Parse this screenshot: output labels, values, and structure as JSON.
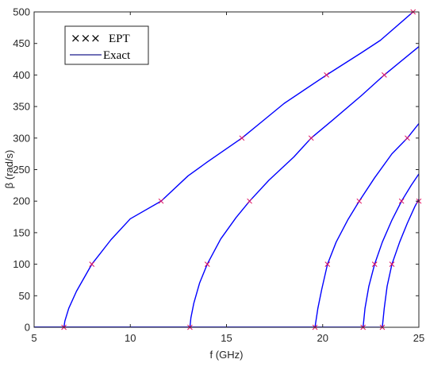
{
  "chart_data": {
    "type": "line",
    "title": "",
    "xlabel": "f (GHz)",
    "ylabel": "β (rad/s)",
    "xlim": [
      5,
      25
    ],
    "ylim": [
      0,
      500
    ],
    "xticks": [
      5,
      10,
      15,
      20,
      25
    ],
    "yticks": [
      0,
      50,
      100,
      150,
      200,
      250,
      300,
      350,
      400,
      450,
      500
    ],
    "grid": false,
    "legend_position": "top-left",
    "legend": [
      {
        "label": "EPT",
        "symbol": "×××",
        "marker": "x",
        "color": "#e0115f"
      },
      {
        "label": "Exact",
        "symbol": "line",
        "color": "#0000ff"
      }
    ],
    "series": [
      {
        "group": "Exact",
        "color": "#0000ff",
        "cutoff": 6.55,
        "x": [
          6.55,
          6.6,
          6.8,
          7.2,
          8.0,
          9.0,
          10.0,
          11.6,
          13.0,
          14.0,
          15.8,
          17.0,
          18.0,
          20.2,
          22.0,
          23.0,
          24.7,
          25.0
        ],
        "y": [
          0,
          10,
          30,
          57,
          100,
          139,
          172,
          200,
          240,
          262,
          300,
          330,
          355,
          400,
          435,
          455,
          500,
          505
        ]
      },
      {
        "group": "Exact",
        "color": "#0000ff",
        "cutoff": 13.1,
        "x": [
          13.1,
          13.15,
          13.3,
          13.6,
          14.0,
          14.7,
          15.5,
          16.2,
          17.2,
          18.5,
          19.4,
          20.5,
          22.0,
          23.2,
          24.2,
          25.0
        ],
        "y": [
          0,
          15,
          38,
          70,
          100,
          140,
          174,
          200,
          233,
          270,
          300,
          328,
          367,
          400,
          425,
          445
        ]
      },
      {
        "group": "Exact",
        "color": "#0000ff",
        "cutoff": 19.6,
        "x": [
          19.6,
          19.75,
          19.95,
          20.25,
          20.7,
          21.3,
          21.9,
          22.7,
          23.6,
          24.4,
          25.0
        ],
        "y": [
          0,
          30,
          60,
          100,
          135,
          170,
          200,
          237,
          275,
          300,
          323
        ]
      },
      {
        "group": "Exact",
        "color": "#0000ff",
        "cutoff": 22.1,
        "x": [
          22.1,
          22.2,
          22.4,
          22.7,
          23.1,
          23.6,
          24.1,
          24.6,
          25.0
        ],
        "y": [
          0,
          30,
          65,
          100,
          135,
          170,
          200,
          225,
          243
        ]
      },
      {
        "group": "Exact",
        "color": "#0000ff",
        "cutoff": 23.1,
        "x": [
          23.1,
          23.2,
          23.35,
          23.6,
          24.0,
          24.4,
          24.8,
          25.0
        ],
        "y": [
          0,
          30,
          65,
          100,
          135,
          165,
          192,
          203
        ]
      }
    ],
    "markers": {
      "group": "EPT",
      "color": "#e0115f",
      "points": [
        [
          6.55,
          0
        ],
        [
          8.0,
          100
        ],
        [
          11.6,
          200
        ],
        [
          15.8,
          300
        ],
        [
          20.2,
          400
        ],
        [
          24.7,
          500
        ],
        [
          13.1,
          0
        ],
        [
          14.0,
          100
        ],
        [
          16.2,
          200
        ],
        [
          19.4,
          300
        ],
        [
          23.2,
          400
        ],
        [
          19.6,
          0
        ],
        [
          20.25,
          100
        ],
        [
          21.9,
          200
        ],
        [
          24.4,
          300
        ],
        [
          22.1,
          0
        ],
        [
          22.7,
          100
        ],
        [
          24.1,
          200
        ],
        [
          23.1,
          0
        ],
        [
          23.6,
          100
        ],
        [
          25.0,
          200
        ]
      ]
    }
  }
}
